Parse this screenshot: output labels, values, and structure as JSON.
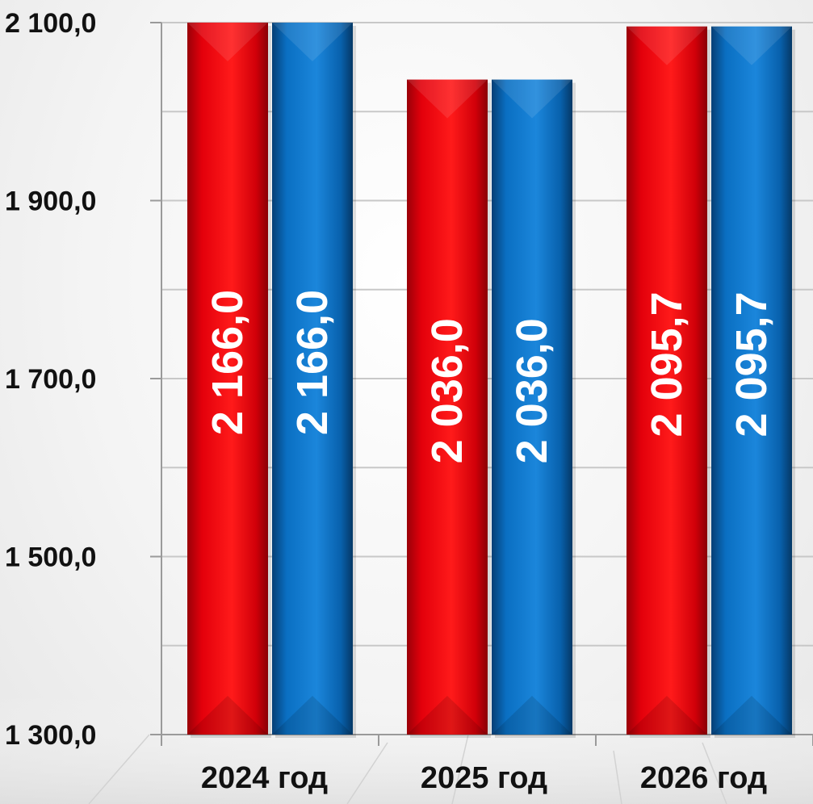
{
  "chart_data": {
    "type": "bar",
    "categories": [
      "2024 год",
      "2025 год",
      "2026 год"
    ],
    "series": [
      {
        "values": [
          2166.0,
          2036.0,
          2095.7
        ],
        "labels": [
          "2 166,0",
          "2 036,0",
          "2 095,7"
        ],
        "color": "#e3000b",
        "label_color": "#ffffff"
      },
      {
        "values": [
          2166.0,
          2036.0,
          2095.7
        ],
        "labels": [
          "2 166,0",
          "2 036,0",
          "2 095,7"
        ],
        "color": "#0a6fc2",
        "label_color": "#ffffff"
      }
    ],
    "ylim": [
      1300,
      2100
    ],
    "y_ticks": [
      1300,
      1500,
      1700,
      1900,
      2100
    ],
    "y_tick_labels": [
      "1 300,0",
      "1 500,0",
      "1 700,0",
      "1 900,0",
      "2 100,0"
    ],
    "grid": true,
    "data_label_orientation": "vertical"
  },
  "colors": {
    "gridline": "#c8c8c8",
    "axis": "#9a9a9a",
    "background": "#f4f4f4"
  }
}
